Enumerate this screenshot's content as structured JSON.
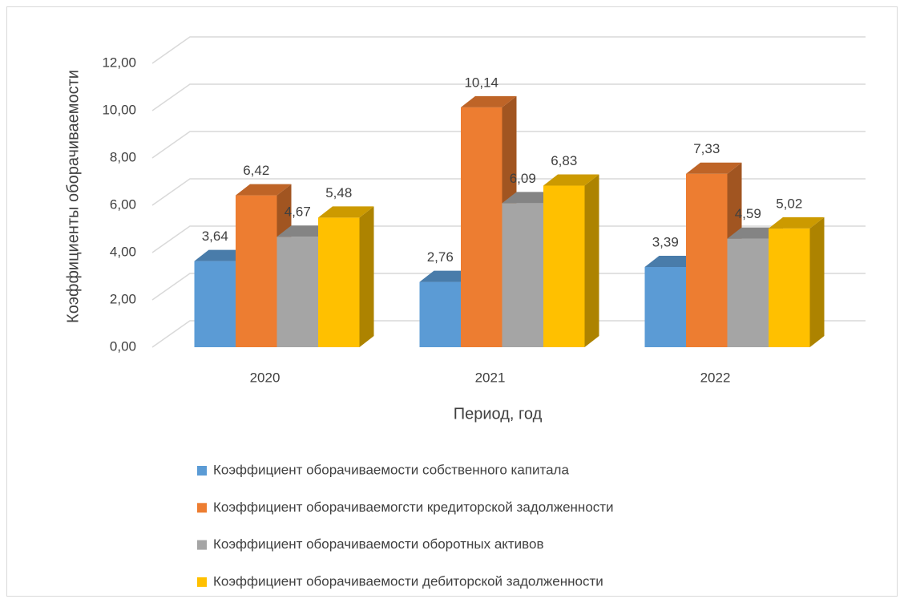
{
  "chart_data": {
    "type": "bar3d",
    "x_label": "Период, год",
    "y_label": "Коэффициенты оборачиваемости",
    "categories": [
      "2020",
      "2021",
      "2022"
    ],
    "series": [
      {
        "name": "Коэффициент оборачиваемости собственного капитала",
        "color": "#5b9bd5",
        "values": [
          3.64,
          2.76,
          3.39
        ],
        "value_labels": [
          "3,64",
          "2,76",
          "3,39"
        ]
      },
      {
        "name": "Коэффициент оборачиваемогсти кредиторской задолженности",
        "color": "#ed7d31",
        "values": [
          6.42,
          10.14,
          7.33
        ],
        "value_labels": [
          "6,42",
          "10,14",
          "7,33"
        ]
      },
      {
        "name": "Коэффициент оборачиваемости оборотных активов",
        "color": "#a5a5a5",
        "values": [
          4.67,
          6.09,
          4.59
        ],
        "value_labels": [
          "4,67",
          "6,09",
          "4,59"
        ]
      },
      {
        "name": "Коэффициент оборачиваемости дебиторской задолженности",
        "color": "#ffc000",
        "values": [
          5.48,
          6.83,
          5.02
        ],
        "value_labels": [
          "5,48",
          "6,83",
          "5,02"
        ]
      }
    ],
    "ylim": [
      0,
      12
    ],
    "yticks": [
      {
        "value": 0,
        "label": "0,00"
      },
      {
        "value": 2,
        "label": "2,00"
      },
      {
        "value": 4,
        "label": "4,00"
      },
      {
        "value": 6,
        "label": "6,00"
      },
      {
        "value": 8,
        "label": "8,00"
      },
      {
        "value": 10,
        "label": "10,00"
      },
      {
        "value": 12,
        "label": "12,00"
      }
    ],
    "grid": true,
    "legend": "bottom"
  }
}
